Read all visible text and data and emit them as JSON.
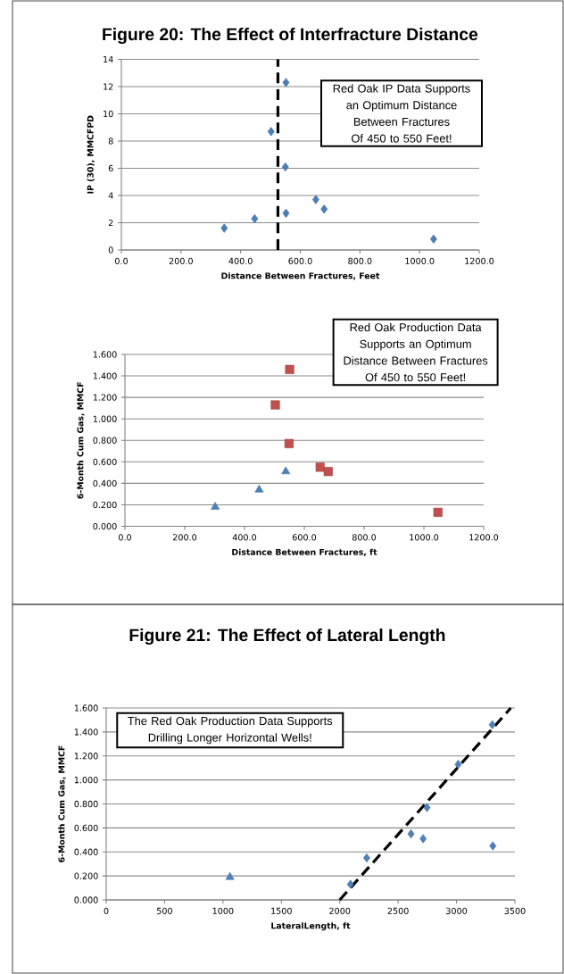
{
  "chart_data": [
    {
      "type": "scatter",
      "title": "Figure 20: The Effect of Interfracture Distance",
      "xlabel": "Distance Between Fractures, Feet",
      "ylabel": "IP (30), MMCFPD",
      "xlim": [
        0,
        1200
      ],
      "ylim": [
        0,
        14
      ],
      "xticks": [
        {
          "value": 0,
          "label": "0.0"
        },
        {
          "value": 200,
          "label": "200.0"
        },
        {
          "value": 400,
          "label": "400.0"
        },
        {
          "value": 600,
          "label": "600.0"
        },
        {
          "value": 800,
          "label": "800.0"
        },
        {
          "value": 1000,
          "label": "1000.0"
        },
        {
          "value": 1200,
          "label": "1200.0"
        }
      ],
      "yticks": [
        0,
        2,
        4,
        6,
        8,
        10,
        12,
        14
      ],
      "grid": "y",
      "marker": "diamond",
      "series": [
        {
          "color": "#4a7ebb",
          "x": [
            345,
            447,
            502,
            552,
            550,
            552,
            652,
            680,
            1047
          ],
          "values": [
            1.6,
            2.3,
            8.7,
            12.3,
            6.1,
            2.7,
            3.7,
            3.0,
            0.8
          ]
        }
      ],
      "ref_lines": [
        {
          "axis": "x",
          "value": 525,
          "color": "#000000",
          "line_style": "dashed"
        }
      ],
      "annotations": [
        "Red Oak IP Data Supports an Optimum Distance Between Fractures Of 450 to 550 Feet!"
      ]
    },
    {
      "type": "scatter",
      "xlabel": "Distance Between Fractures, ft",
      "ylabel": "6-Month Cum Gas, MMCF",
      "xlim": [
        0,
        1200
      ],
      "ylim": [
        0,
        1.6
      ],
      "xticks": [
        {
          "value": 0,
          "label": "0.0"
        },
        {
          "value": 200,
          "label": "200.0"
        },
        {
          "value": 400,
          "label": "400.0"
        },
        {
          "value": 600,
          "label": "600.0"
        },
        {
          "value": 800,
          "label": "800.0"
        },
        {
          "value": 1000,
          "label": "1000.0"
        },
        {
          "value": 1200,
          "label": "1200.0"
        }
      ],
      "yticks": [
        {
          "value": 0,
          "label": "0.000"
        },
        {
          "value": 0.2,
          "label": "0.200"
        },
        {
          "value": 0.4,
          "label": "0.400"
        },
        {
          "value": 0.6,
          "label": "0.600"
        },
        {
          "value": 0.8,
          "label": "0.800"
        },
        {
          "value": 1.0,
          "label": "1.000"
        },
        {
          "value": 1.2,
          "label": "1.200"
        },
        {
          "value": 1.4,
          "label": "1.400"
        },
        {
          "value": 1.6,
          "label": "1.600"
        }
      ],
      "grid": "y",
      "series": [
        {
          "color": "#c0504d",
          "marker": "square",
          "x": [
            551,
            503,
            549,
            653,
            680,
            1047
          ],
          "values": [
            1.46,
            1.13,
            0.77,
            0.55,
            0.51,
            0.13
          ]
        },
        {
          "color": "#4f81bd",
          "marker": "triangle",
          "x": [
            302,
            449,
            538
          ],
          "values": [
            0.18,
            0.34,
            0.51
          ]
        }
      ],
      "annotations": [
        "Red Oak Production Data Supports an Optimum Distance Between Fractures Of 450 to 550 Feet!"
      ]
    },
    {
      "type": "scatter",
      "title": "Figure 21: The Effect of Lateral Length",
      "xlabel": "LateralLength, ft",
      "ylabel": "6-Month Cum Gas, MMCF",
      "xlim": [
        0,
        3500
      ],
      "ylim": [
        0,
        1.6
      ],
      "xticks": [
        0,
        500,
        1000,
        1500,
        2000,
        2500,
        3000,
        3500
      ],
      "yticks": [
        {
          "value": 0,
          "label": "0.000"
        },
        {
          "value": 0.2,
          "label": "0.200"
        },
        {
          "value": 0.4,
          "label": "0.400"
        },
        {
          "value": 0.6,
          "label": "0.600"
        },
        {
          "value": 0.8,
          "label": "0.800"
        },
        {
          "value": 1.0,
          "label": "1.000"
        },
        {
          "value": 1.2,
          "label": "1.200"
        },
        {
          "value": 1.4,
          "label": "1.400"
        },
        {
          "value": 1.6,
          "label": "1.600"
        }
      ],
      "grid": "y",
      "series": [
        {
          "color": "#4f81bd",
          "marker": "diamond",
          "x": [
            2092,
            2231,
            2610,
            2714,
            2747,
            3014,
            3306,
            3311
          ],
          "values": [
            0.13,
            0.35,
            0.55,
            0.51,
            0.77,
            1.13,
            1.46,
            0.45
          ]
        },
        {
          "color": "#4f81bd",
          "marker": "triangle",
          "x": [
            1060
          ],
          "values": [
            0.19
          ]
        },
        {
          "type": "line",
          "color": "#000000",
          "marker": "none",
          "line_style": "dashed",
          "x": [
            2000,
            3465
          ],
          "values": [
            0,
            1.6
          ]
        }
      ],
      "annotations": [
        "The Red Oak Production Data Supports Drilling Longer Horizontal Wells!"
      ]
    }
  ]
}
